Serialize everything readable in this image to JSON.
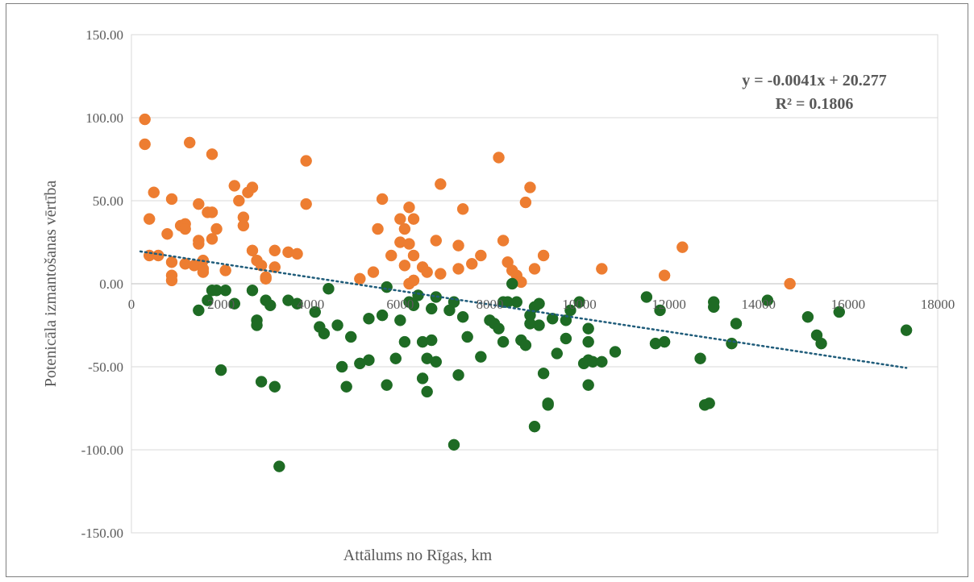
{
  "chart_data": {
    "type": "scatter",
    "title": "",
    "xlabel": "Attālums no Rīgas, km",
    "ylabel": "Potenicāla izmantošanas vērtība",
    "xlim": [
      0,
      18000
    ],
    "ylim": [
      -150,
      150
    ],
    "x_ticks": [
      "0",
      "2000",
      "4000",
      "6000",
      "8000",
      "10000",
      "12000",
      "14000",
      "16000",
      "18000"
    ],
    "y_ticks": [
      "150.00",
      "100.00",
      "50.00",
      "0.00",
      "-50.00",
      "-100.00",
      "-150.00"
    ],
    "grid": "horizontal",
    "legend": "none",
    "trendline": {
      "equation_label": "y = -0.0041x + 20.277",
      "r2_label": "R² = 0.1806",
      "slope": -0.0041,
      "intercept": 20.277,
      "x_range": [
        200,
        17300
      ],
      "color": "#1f5c7a",
      "style": "dotted"
    },
    "series": [
      {
        "color": "#ed7d31",
        "points": [
          [
            300,
            99
          ],
          [
            300,
            84
          ],
          [
            400,
            39
          ],
          [
            500,
            55
          ],
          [
            400,
            17
          ],
          [
            600,
            17
          ],
          [
            800,
            30
          ],
          [
            900,
            51
          ],
          [
            900,
            13
          ],
          [
            900,
            5
          ],
          [
            900,
            2
          ],
          [
            1100,
            35
          ],
          [
            1200,
            36
          ],
          [
            1200,
            33
          ],
          [
            1300,
            85
          ],
          [
            1200,
            12
          ],
          [
            1400,
            11
          ],
          [
            1500,
            48
          ],
          [
            1500,
            26
          ],
          [
            1500,
            24
          ],
          [
            1600,
            14
          ],
          [
            1600,
            9
          ],
          [
            1600,
            7
          ],
          [
            1700,
            43
          ],
          [
            1800,
            78
          ],
          [
            1800,
            43
          ],
          [
            1800,
            27
          ],
          [
            1900,
            33
          ],
          [
            2100,
            8
          ],
          [
            2300,
            59
          ],
          [
            2400,
            50
          ],
          [
            2500,
            40
          ],
          [
            2500,
            35
          ],
          [
            2600,
            55
          ],
          [
            2700,
            58
          ],
          [
            2700,
            20
          ],
          [
            2800,
            14
          ],
          [
            2900,
            11
          ],
          [
            3000,
            4
          ],
          [
            3000,
            3
          ],
          [
            3200,
            20
          ],
          [
            3200,
            10
          ],
          [
            3500,
            19
          ],
          [
            3700,
            18
          ],
          [
            3900,
            74
          ],
          [
            3900,
            48
          ],
          [
            5100,
            3
          ],
          [
            5400,
            7
          ],
          [
            5500,
            33
          ],
          [
            5600,
            51
          ],
          [
            5800,
            17
          ],
          [
            6000,
            39
          ],
          [
            6000,
            25
          ],
          [
            6100,
            33
          ],
          [
            6100,
            11
          ],
          [
            6200,
            46
          ],
          [
            6200,
            24
          ],
          [
            6200,
            0
          ],
          [
            6300,
            39
          ],
          [
            6300,
            17
          ],
          [
            6300,
            2
          ],
          [
            6500,
            10
          ],
          [
            6600,
            7
          ],
          [
            6800,
            26
          ],
          [
            6900,
            60
          ],
          [
            6900,
            6
          ],
          [
            7300,
            23
          ],
          [
            7300,
            9
          ],
          [
            7400,
            45
          ],
          [
            7600,
            12
          ],
          [
            7800,
            17
          ],
          [
            8200,
            76
          ],
          [
            8300,
            26
          ],
          [
            8400,
            13
          ],
          [
            8500,
            8
          ],
          [
            8600,
            5
          ],
          [
            8700,
            1
          ],
          [
            8800,
            49
          ],
          [
            8900,
            58
          ],
          [
            9000,
            9
          ],
          [
            9200,
            17
          ],
          [
            10500,
            9
          ],
          [
            11900,
            5
          ],
          [
            12300,
            22
          ],
          [
            14700,
            0
          ]
        ]
      },
      {
        "color": "#1e6b24",
        "points": [
          [
            1500,
            -16
          ],
          [
            1700,
            -10
          ],
          [
            1800,
            -4
          ],
          [
            1900,
            -4
          ],
          [
            2000,
            -52
          ],
          [
            2100,
            -4
          ],
          [
            2300,
            -12
          ],
          [
            2700,
            -4
          ],
          [
            2800,
            -22
          ],
          [
            2800,
            -25
          ],
          [
            2900,
            -59
          ],
          [
            3000,
            -10
          ],
          [
            3100,
            -13
          ],
          [
            3200,
            -62
          ],
          [
            3300,
            -110
          ],
          [
            3500,
            -10
          ],
          [
            3700,
            -12
          ],
          [
            4100,
            -17
          ],
          [
            4200,
            -26
          ],
          [
            4300,
            -30
          ],
          [
            4400,
            -3
          ],
          [
            4600,
            -25
          ],
          [
            4700,
            -50
          ],
          [
            4900,
            -32
          ],
          [
            4800,
            -62
          ],
          [
            5100,
            -48
          ],
          [
            5300,
            -46
          ],
          [
            5300,
            -21
          ],
          [
            5600,
            -19
          ],
          [
            5700,
            -2
          ],
          [
            5700,
            -61
          ],
          [
            5900,
            -45
          ],
          [
            6000,
            -22
          ],
          [
            6100,
            -35
          ],
          [
            6200,
            -11
          ],
          [
            6300,
            -13
          ],
          [
            6400,
            -7
          ],
          [
            6500,
            -57
          ],
          [
            6500,
            -35
          ],
          [
            6600,
            -45
          ],
          [
            6600,
            -65
          ],
          [
            6700,
            -34
          ],
          [
            6700,
            -15
          ],
          [
            6800,
            -8
          ],
          [
            6800,
            -47
          ],
          [
            7100,
            -16
          ],
          [
            7200,
            -11
          ],
          [
            7200,
            -97
          ],
          [
            7300,
            -55
          ],
          [
            7400,
            -20
          ],
          [
            7500,
            -32
          ],
          [
            7800,
            -44
          ],
          [
            8000,
            -22
          ],
          [
            8100,
            -24
          ],
          [
            8200,
            -27
          ],
          [
            8300,
            -11
          ],
          [
            8300,
            -35
          ],
          [
            8400,
            -11
          ],
          [
            8500,
            0
          ],
          [
            8600,
            -11
          ],
          [
            8700,
            -34
          ],
          [
            8800,
            -37
          ],
          [
            8900,
            -19
          ],
          [
            8900,
            -24
          ],
          [
            9000,
            -86
          ],
          [
            9000,
            -14
          ],
          [
            9100,
            -12
          ],
          [
            9100,
            -25
          ],
          [
            9200,
            -54
          ],
          [
            9300,
            -72
          ],
          [
            9300,
            -73
          ],
          [
            9400,
            -21
          ],
          [
            9500,
            -42
          ],
          [
            9700,
            -33
          ],
          [
            9700,
            -22
          ],
          [
            9800,
            -16
          ],
          [
            10000,
            -11
          ],
          [
            10100,
            -48
          ],
          [
            10200,
            -35
          ],
          [
            10200,
            -46
          ],
          [
            10200,
            -27
          ],
          [
            10200,
            -61
          ],
          [
            10300,
            -47
          ],
          [
            10500,
            -47
          ],
          [
            10800,
            -41
          ],
          [
            11500,
            -8
          ],
          [
            11700,
            -36
          ],
          [
            11800,
            -16
          ],
          [
            11900,
            -35
          ],
          [
            12700,
            -45
          ],
          [
            12800,
            -73
          ],
          [
            12900,
            -72
          ],
          [
            13000,
            -11
          ],
          [
            13000,
            -14
          ],
          [
            13400,
            -36
          ],
          [
            13500,
            -24
          ],
          [
            14200,
            -10
          ],
          [
            15100,
            -20
          ],
          [
            15300,
            -31
          ],
          [
            15400,
            -36
          ],
          [
            15800,
            -17
          ],
          [
            17300,
            -28
          ]
        ]
      }
    ]
  }
}
